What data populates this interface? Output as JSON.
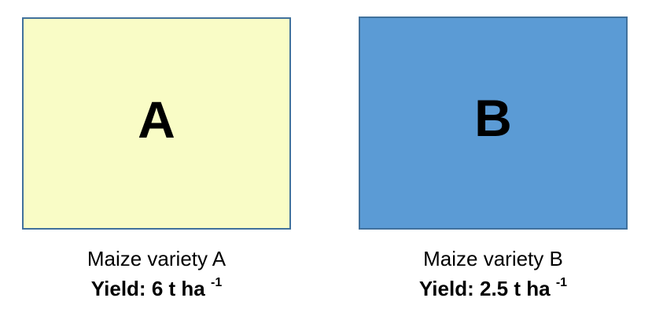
{
  "colors": {
    "box_a_fill": "#f9fcc6",
    "box_b_fill": "#5b9bd5",
    "box_border": "#41719c",
    "text": "#000000"
  },
  "plots": [
    {
      "letter": "A",
      "variety": "Maize variety A",
      "yield_label": "Yield:",
      "yield_value": "6",
      "yield_unit": "t ha",
      "yield_unit_exponent": "-1"
    },
    {
      "letter": "B",
      "variety": "Maize variety B",
      "yield_label": "Yield:",
      "yield_value": "2.5",
      "yield_unit": "t ha",
      "yield_unit_exponent": "-1"
    }
  ]
}
